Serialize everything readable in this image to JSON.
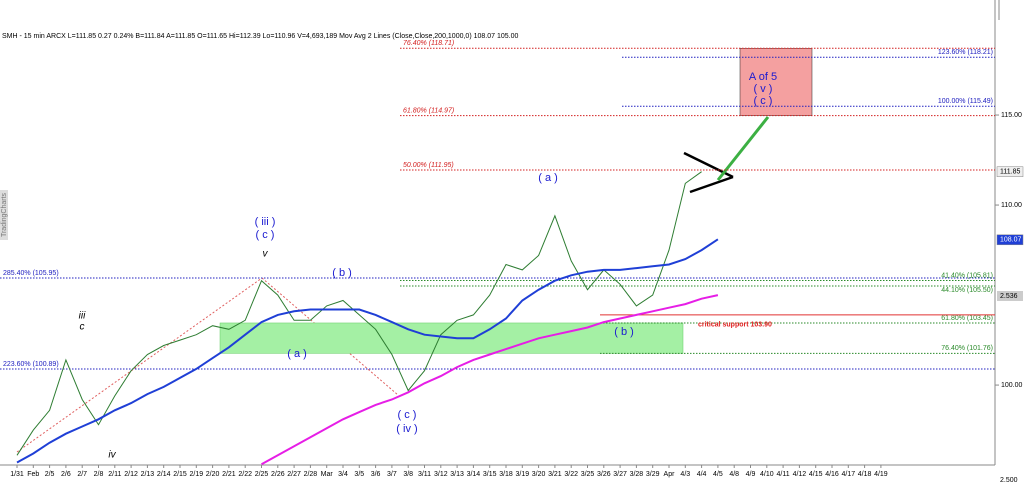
{
  "chart_data": {
    "type": "line",
    "header": "SMH - 15 min ARCX L=111.85 0.27 0.24% B=111.84 A=111.85 O=111.65 Hi=112.39 Lo=110.96 V=4,693,189 Mov Avg 2 Lines (Close,Close,200,1000,0) 108.07 105.00",
    "categories": [
      "1/31",
      "Feb",
      "2/5",
      "2/6",
      "2/7",
      "2/8",
      "2/11",
      "2/12",
      "2/13",
      "2/14",
      "2/15",
      "2/19",
      "2/20",
      "2/21",
      "2/22",
      "2/25",
      "2/26",
      "2/27",
      "2/28",
      "Mar",
      "3/4",
      "3/5",
      "3/6",
      "3/7",
      "3/8",
      "3/11",
      "3/12",
      "3/13",
      "3/14",
      "3/15",
      "3/18",
      "3/19",
      "3/20",
      "3/21",
      "3/22",
      "3/25",
      "3/26",
      "3/27",
      "3/28",
      "3/29",
      "Apr",
      "4/3",
      "4/4",
      "4/5",
      "4/8",
      "4/9",
      "4/10",
      "4/11",
      "4/12",
      "4/15",
      "4/16",
      "4/17",
      "4/18",
      "4/19"
    ],
    "series": [
      {
        "color": "#2e7d32",
        "values": [
          96.1,
          97.5,
          98.6,
          101.4,
          99.2,
          97.8,
          99.4,
          100.8,
          101.7,
          102.2,
          102.5,
          102.8,
          103.3,
          103.1,
          103.6,
          105.8,
          105.0,
          103.6,
          103.6,
          104.4,
          104.7,
          103.9,
          103.1,
          101.7,
          99.7,
          100.8,
          102.8,
          103.6,
          103.9,
          105.0,
          106.7,
          106.4,
          107.2,
          109.4,
          106.9,
          105.3,
          106.4,
          105.6,
          104.4,
          105.0,
          107.5,
          111.2,
          111.85,
          null,
          null,
          null,
          null,
          null,
          null,
          null,
          null,
          null,
          null,
          null
        ]
      },
      {
        "color": "#1f3fd6",
        "values": [
          95.7,
          96.2,
          96.8,
          97.3,
          97.7,
          98.1,
          98.6,
          99.0,
          99.5,
          99.9,
          100.4,
          100.9,
          101.5,
          102.1,
          102.8,
          103.5,
          103.9,
          104.1,
          104.2,
          104.2,
          104.2,
          104.2,
          103.9,
          103.5,
          103.1,
          102.8,
          102.7,
          102.6,
          102.6,
          103.1,
          103.7,
          104.7,
          105.3,
          105.8,
          106.1,
          106.3,
          106.4,
          106.4,
          106.5,
          106.6,
          106.7,
          107.0,
          107.5,
          108.1,
          null,
          null,
          null,
          null,
          null,
          null,
          null,
          null,
          null,
          null
        ]
      },
      {
        "color": "#e61ee6",
        "values": [
          null,
          null,
          null,
          null,
          null,
          null,
          null,
          null,
          null,
          null,
          null,
          null,
          null,
          null,
          null,
          95.6,
          96.1,
          96.6,
          97.1,
          97.6,
          98.1,
          98.5,
          98.9,
          99.2,
          99.6,
          100.1,
          100.5,
          101.0,
          101.4,
          101.7,
          102.0,
          102.3,
          102.6,
          102.8,
          103.0,
          103.2,
          103.5,
          103.7,
          103.9,
          104.1,
          104.3,
          104.5,
          104.8,
          105.0,
          null,
          null,
          null,
          null,
          null,
          null,
          null,
          null,
          null,
          null
        ]
      }
    ],
    "ylim": [
      95.56,
      121.39
    ],
    "yticks": [
      {
        "value": 115,
        "label": "115.00"
      },
      {
        "value": 110,
        "label": "110.00"
      },
      {
        "value": 100,
        "label": "100.00"
      }
    ],
    "levels": [
      {
        "label": "76.40% (118.71)",
        "value": 118.71,
        "color": "#d32020"
      },
      {
        "label": "61.80% (114.97)",
        "value": 114.97,
        "color": "#d32020"
      },
      {
        "label": "50.00% (111.95)",
        "value": 111.95,
        "color": "#d32020"
      },
      {
        "label": "123.60% (118.21)",
        "value": 118.21,
        "color": "#2020c0"
      },
      {
        "label": "100.00% (115.49)",
        "value": 115.49,
        "color": "#2020c0"
      },
      {
        "label": "285.40% (105.95)",
        "value": 105.95,
        "color": "#2020c0"
      },
      {
        "label": "223.60% (100.89)",
        "value": 100.89,
        "color": "#2020c0"
      },
      {
        "label": "41.40% (105.81)",
        "value": 105.81,
        "color": "#2a8a2a"
      },
      {
        "label": "44.10% (105.50)",
        "value": 105.5,
        "color": "#2a8a2a"
      },
      {
        "label": "61.80% (103.45)",
        "value": 103.45,
        "color": "#2a8a2a"
      },
      {
        "label": "76.40% (101.76)",
        "value": 101.76,
        "color": "#2a8a2a"
      }
    ],
    "support": {
      "label": "critical support 103.90",
      "value": 103.9
    },
    "waves": [
      "( iii )",
      "( c )",
      "v",
      "( b )",
      "( a )",
      "iii",
      "c",
      "iv",
      "( c )",
      "( iv )",
      "( a )",
      "( b )",
      "A of 5",
      "( v )",
      "( c )"
    ],
    "price_tags": [
      {
        "value": 111.85,
        "label": "111.85"
      },
      {
        "value": 108.07,
        "label": "108.07"
      }
    ],
    "side_texts": [
      "2.536",
      "2.500",
      "TradingCharts"
    ]
  }
}
